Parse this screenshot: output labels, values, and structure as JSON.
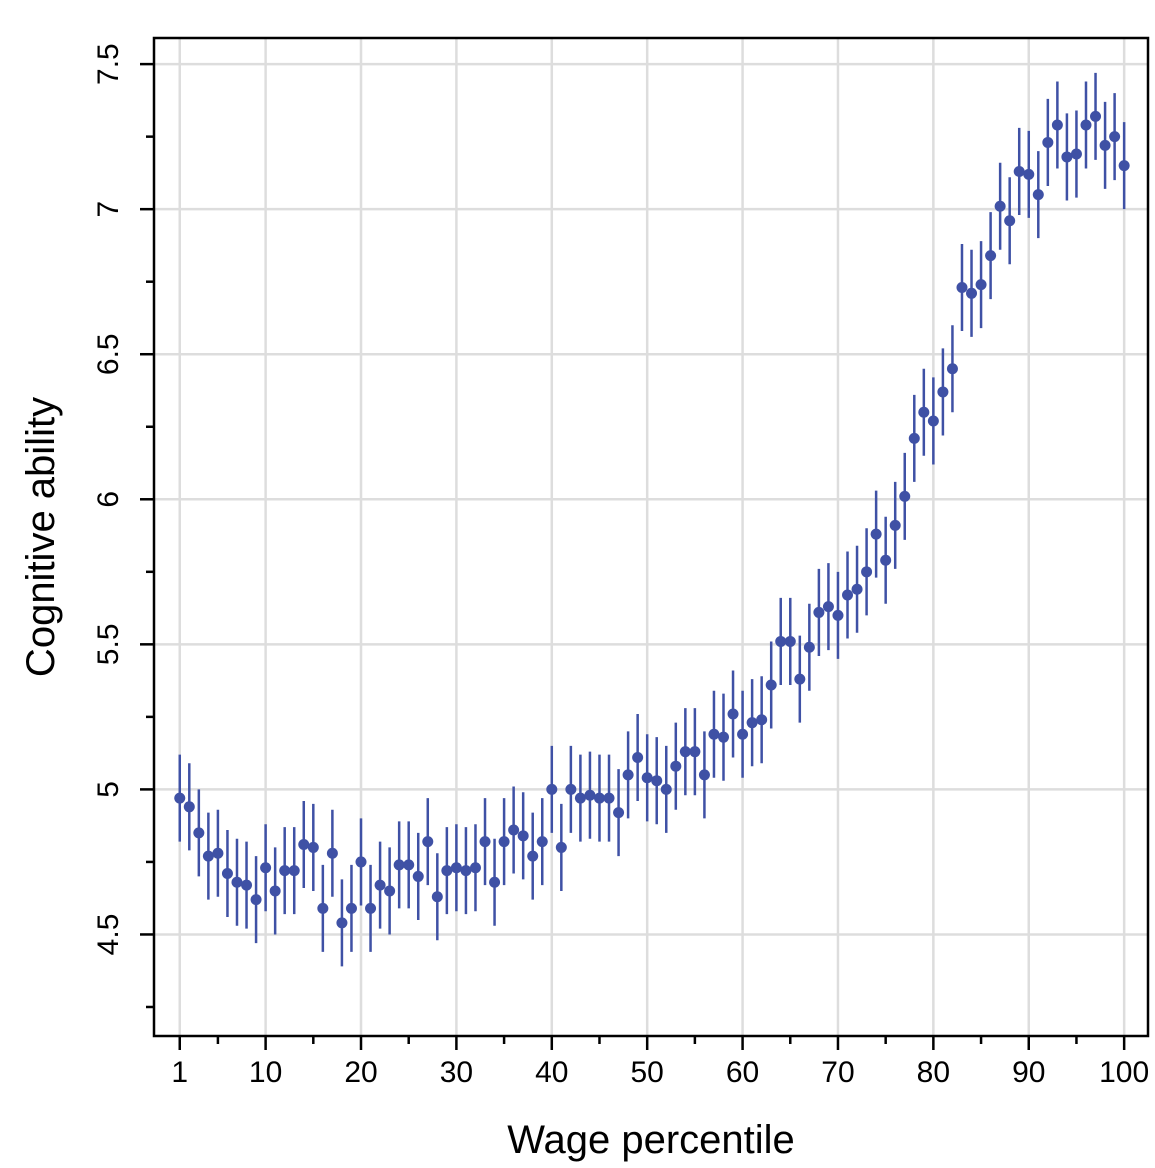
{
  "chart_data": {
    "type": "scatter",
    "title": "",
    "xlabel": "Wage percentile",
    "ylabel": "Cognitive ability",
    "xlim": [
      -1.7,
      102.5
    ],
    "ylim": [
      4.15,
      7.59
    ],
    "grid": true,
    "error_bars": true,
    "colors": {
      "marker": "#3f51a5",
      "grid": "#dddddd",
      "axis": "#000000"
    },
    "x_ticks": [
      1,
      10,
      20,
      30,
      40,
      50,
      60,
      70,
      80,
      90,
      100
    ],
    "x_tick_labels": [
      "1",
      "10",
      "20",
      "30",
      "40",
      "50",
      "60",
      "70",
      "80",
      "90",
      "100"
    ],
    "x_minor_ticks": [
      5,
      15,
      25,
      35,
      45,
      55,
      65,
      75,
      85,
      95
    ],
    "y_ticks": [
      4.5,
      5,
      5.5,
      6,
      6.5,
      7,
      7.5
    ],
    "y_tick_labels": [
      "4.5",
      "5",
      "5.5",
      "6",
      "6.5",
      "7",
      "7.5"
    ],
    "y_minor_ticks": [
      4.25,
      4.75,
      5.25,
      5.75,
      6.25,
      6.75,
      7.25
    ],
    "series": [
      {
        "x": [
          1,
          2,
          3,
          4,
          5,
          6,
          7,
          8,
          9,
          10,
          11,
          12,
          13,
          14,
          15,
          16,
          17,
          18,
          19,
          20,
          21,
          22,
          23,
          24,
          25,
          26,
          27,
          28,
          29,
          30,
          31,
          32,
          33,
          34,
          35,
          36,
          37,
          38,
          39,
          40,
          41,
          42,
          43,
          44,
          45,
          46,
          47,
          48,
          49,
          50,
          51,
          52,
          53,
          54,
          55,
          56,
          57,
          58,
          59,
          60,
          61,
          62,
          63,
          64,
          65,
          66,
          67,
          68,
          69,
          70,
          71,
          72,
          73,
          74,
          75,
          76,
          77,
          78,
          79,
          80,
          81,
          82,
          83,
          84,
          85,
          86,
          87,
          88,
          89,
          90,
          91,
          92,
          93,
          94,
          95,
          96,
          97,
          98,
          99,
          100
        ],
        "y": [
          4.97,
          4.94,
          4.85,
          4.77,
          4.78,
          4.71,
          4.68,
          4.67,
          4.62,
          4.73,
          4.65,
          4.72,
          4.72,
          4.81,
          4.8,
          4.59,
          4.78,
          4.54,
          4.59,
          4.75,
          4.59,
          4.67,
          4.65,
          4.74,
          4.74,
          4.7,
          4.82,
          4.63,
          4.72,
          4.73,
          4.72,
          4.73,
          4.82,
          4.68,
          4.82,
          4.86,
          4.84,
          4.77,
          4.82,
          5.0,
          4.8,
          5.0,
          4.97,
          4.98,
          4.97,
          4.97,
          4.92,
          5.05,
          5.11,
          5.04,
          5.03,
          5.0,
          5.08,
          5.13,
          5.13,
          5.05,
          5.19,
          5.18,
          5.26,
          5.19,
          5.23,
          5.24,
          5.36,
          5.51,
          5.51,
          5.38,
          5.49,
          5.61,
          5.63,
          5.6,
          5.67,
          5.69,
          5.75,
          5.88,
          5.79,
          5.91,
          6.01,
          6.21,
          6.3,
          6.27,
          6.37,
          6.45,
          6.73,
          6.71,
          6.74,
          6.84,
          7.01,
          6.96,
          7.13,
          7.12,
          7.05,
          7.23,
          7.29,
          7.18,
          7.19,
          7.29,
          7.32,
          7.22,
          7.25,
          7.15
        ],
        "ci": 0.15
      }
    ]
  }
}
